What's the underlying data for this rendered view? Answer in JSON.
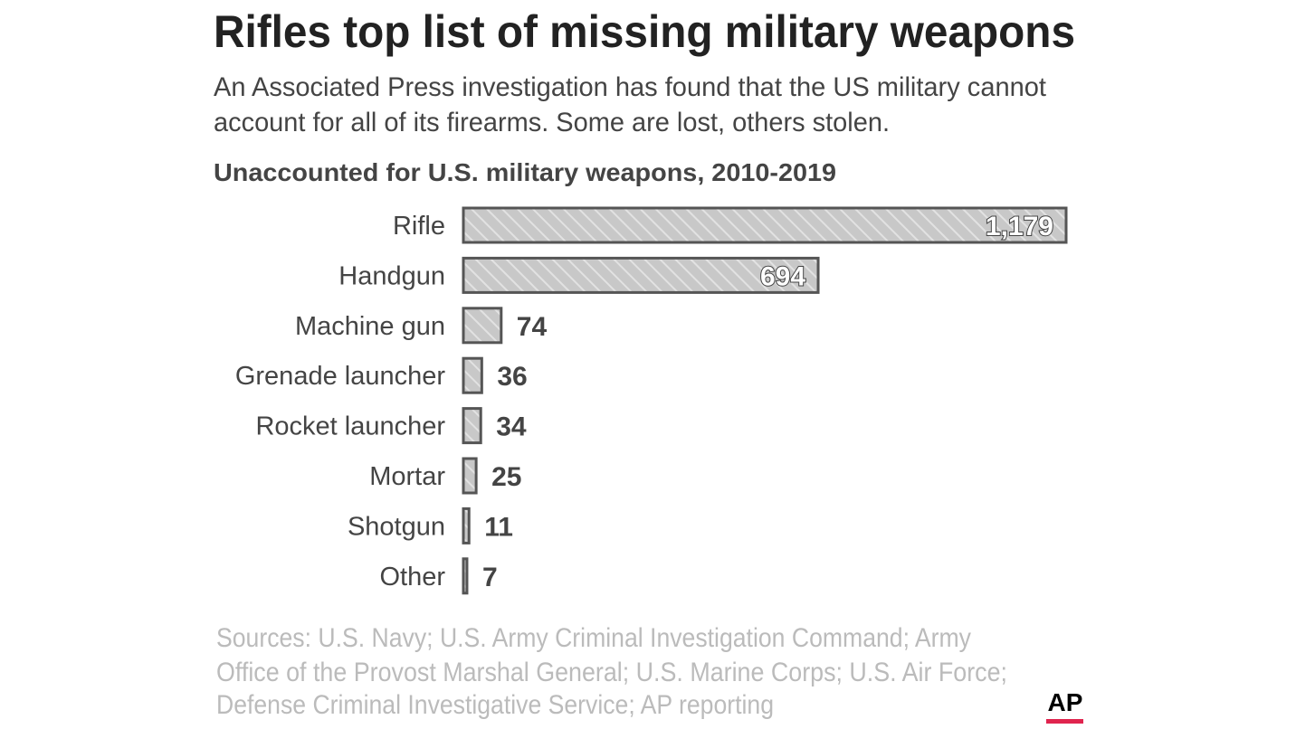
{
  "chart_data": {
    "type": "bar",
    "orientation": "horizontal",
    "title": "Rifles top list of missing military weapons",
    "subtitle": [
      "An Associated Press investigation has found that the US military cannot",
      "account for all of its firearms. Some are lost, others stolen."
    ],
    "chart_title": "Unaccounted for U.S. military weapons, 2010-2019",
    "categories": [
      "Rifle",
      "Handgun",
      "Machine gun",
      "Grenade launcher",
      "Rocket launcher",
      "Mortar",
      "Shotgun",
      "Other"
    ],
    "values": [
      1179,
      694,
      74,
      36,
      34,
      25,
      11,
      7
    ],
    "value_labels": [
      "1,179",
      "694",
      "74",
      "36",
      "34",
      "25",
      "11",
      "7"
    ],
    "color": "#c8c8c8",
    "source": [
      "Sources: U.S. Navy; U.S. Army Criminal Investigation Command; Army",
      "Office of  the Provost Marshal General; U.S. Marine Corps; U.S. Air Force;",
      "Defense Criminal Investigative Service; AP reporting"
    ],
    "logo": "AP"
  }
}
